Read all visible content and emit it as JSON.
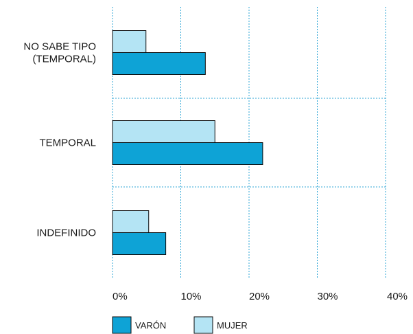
{
  "chart_data": {
    "type": "bar",
    "orientation": "horizontal",
    "categories": [
      "NO SABE TIPO\n(TEMPORAL)",
      "TEMPORAL",
      "INDEFINIDO"
    ],
    "series": [
      {
        "name": "VARÓN",
        "values": [
          13.6,
          22.0,
          7.8
        ]
      },
      {
        "name": "MUJER",
        "values": [
          4.9,
          15.0,
          5.3
        ]
      }
    ],
    "xlim": [
      0,
      40
    ],
    "ticks": [
      0,
      10,
      20,
      30,
      40
    ],
    "tick_labels": [
      "0%",
      "10%",
      "20%",
      "30%",
      "40%"
    ],
    "grid": true,
    "legend_position": "bottom"
  },
  "colors": {
    "VARÓN": "#0ea3d6",
    "MUJER": "#b4e4f4",
    "grid": "#2ea6d6",
    "bar_border": "#0a0a0a"
  }
}
